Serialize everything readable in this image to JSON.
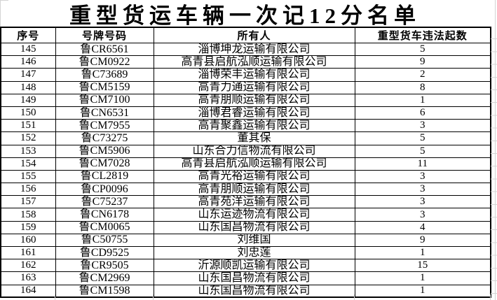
{
  "title": "重型货运车辆一次记12分名单",
  "table": {
    "headers": [
      "序号",
      "号牌号码",
      "所有人",
      "重型货车违法起数"
    ],
    "rows": [
      [
        "145",
        "鲁CR6561",
        "淄博坤龙运输有限公司",
        "5"
      ],
      [
        "146",
        "鲁CM0922",
        "高青县启航泓顺运输有限公司",
        "9"
      ],
      [
        "147",
        "鲁C73689",
        "淄博荣丰运输有限公司",
        "2"
      ],
      [
        "148",
        "鲁CM5159",
        "高青力通运输有限公司",
        "8"
      ],
      [
        "149",
        "鲁CM7100",
        "高青朋顺运输有限公司",
        "1"
      ],
      [
        "150",
        "鲁CN6531",
        "淄博君睿运输有限公司",
        "6"
      ],
      [
        "151",
        "鲁CM7955",
        "高青聚鑫运输有限公司",
        "3"
      ],
      [
        "152",
        "鲁C73275",
        "董其保",
        "5"
      ],
      [
        "153",
        "鲁CM5906",
        "山东合力信物流有限公司",
        "5"
      ],
      [
        "154",
        "鲁CM7028",
        "高青县启航泓顺运输有限公司",
        "11"
      ],
      [
        "155",
        "鲁CL2819",
        "高青光裕运输有限公司",
        "3"
      ],
      [
        "156",
        "鲁CP0096",
        "高青朋顺运输有限公司",
        "3"
      ],
      [
        "157",
        "鲁C75237",
        "高青苑洋运输有限公司",
        "3"
      ],
      [
        "158",
        "鲁CN6178",
        "山东运迹物流有限公司",
        "3"
      ],
      [
        "159",
        "鲁CM0065",
        "山东国昌物流有限公司",
        "4"
      ],
      [
        "160",
        "鲁C50755",
        "刘维国",
        "9"
      ],
      [
        "161",
        "鲁CD9525",
        "刘忠莲",
        "1"
      ],
      [
        "162",
        "鲁CR9505",
        "沂源顺凯运输有限公司",
        "15"
      ],
      [
        "163",
        "鲁CM2969",
        "山东国昌物流有限公司",
        "1"
      ],
      [
        "164",
        "鲁CM1598",
        "山东国昌物流有限公司",
        "1"
      ]
    ]
  },
  "colors": {
    "text": "#000000",
    "table_border": "#000000",
    "gridline": "#d4d4d4",
    "background": "#ffffff"
  }
}
